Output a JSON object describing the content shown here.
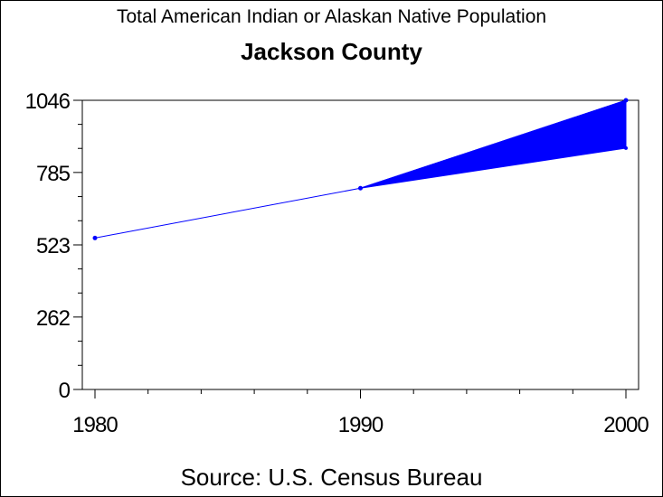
{
  "chart_data": {
    "type": "line",
    "title": "Total American Indian or Alaskan Native Population",
    "subtitle": "Jackson County",
    "footnote": "Source: U.S. Census Bureau",
    "x": [
      1980,
      1990,
      2000
    ],
    "series": [
      {
        "values": [
          548,
          728,
          1046
        ]
      }
    ],
    "band": {
      "x": [
        1990,
        2000
      ],
      "lower": [
        728,
        873
      ],
      "upper": [
        728,
        1046
      ]
    },
    "xticks": [
      "1980",
      "1990",
      "2000"
    ],
    "yticks": [
      "0",
      "262",
      "523",
      "785",
      "1046"
    ],
    "xlim": [
      1980,
      2000
    ],
    "ylim": [
      0,
      1046
    ],
    "grid": false,
    "colors": {
      "line": "#0000ff",
      "band": "#0000ff",
      "axis": "#000000"
    }
  }
}
